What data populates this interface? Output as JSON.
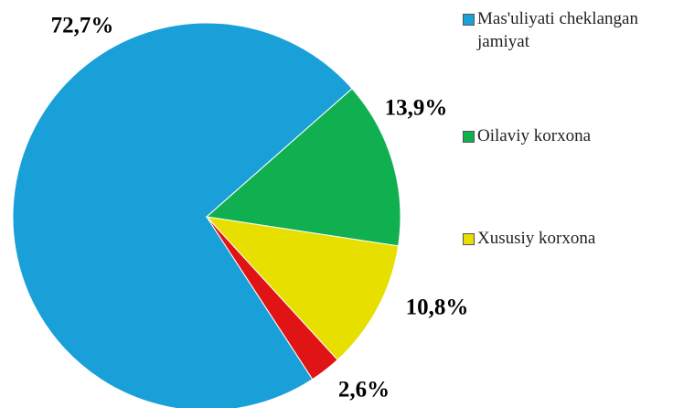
{
  "chart_data": {
    "type": "pie",
    "categories": [
      "Mas'uliyati cheklangan jamiyat",
      "Oilaviy korxona",
      "Xususiy korxona",
      null
    ],
    "values": [
      72.7,
      13.9,
      10.8,
      2.6
    ],
    "value_labels": [
      "72,7%",
      "13,9%",
      "10,8%",
      "2,6%"
    ],
    "colors": [
      "#1aa0d8",
      "#10b050",
      "#e6df00",
      "#e01414"
    ],
    "legend": "right"
  }
}
